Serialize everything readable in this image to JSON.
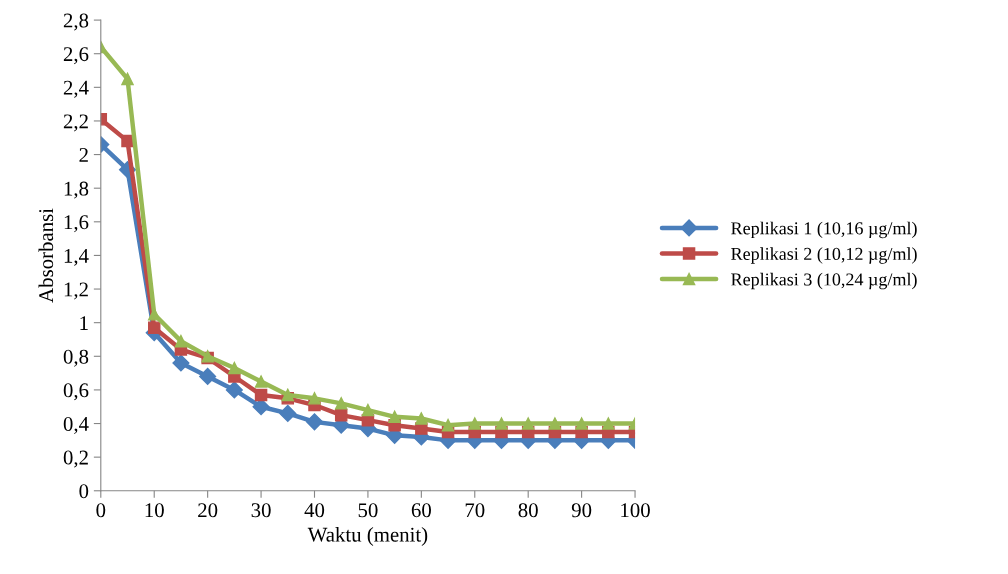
{
  "chart_data": {
    "type": "line",
    "xlabel": "Waktu (menit)",
    "ylabel": "Absorbansi",
    "x": [
      0,
      5,
      10,
      15,
      20,
      25,
      30,
      35,
      40,
      45,
      50,
      55,
      60,
      65,
      70,
      75,
      80,
      85,
      90,
      95,
      100
    ],
    "series": [
      {
        "name": "Replikasi 1 (10,16 µg/ml)",
        "color": "#4a7ebb",
        "marker": "diamond",
        "values": [
          2.06,
          1.91,
          0.94,
          0.76,
          0.68,
          0.6,
          0.5,
          0.46,
          0.41,
          0.39,
          0.37,
          0.33,
          0.32,
          0.3,
          0.3,
          0.3,
          0.3,
          0.3,
          0.3,
          0.3,
          0.3
        ]
      },
      {
        "name": "Replikasi 2 (10,12 µg/ml)",
        "color": "#be4b48",
        "marker": "square",
        "values": [
          2.21,
          2.08,
          0.97,
          0.84,
          0.79,
          0.68,
          0.57,
          0.55,
          0.51,
          0.45,
          0.42,
          0.39,
          0.37,
          0.35,
          0.35,
          0.35,
          0.35,
          0.35,
          0.35,
          0.35,
          0.35
        ]
      },
      {
        "name": "Replikasi 3 (10,24 µg/ml)",
        "color": "#98b954",
        "marker": "triangle",
        "values": [
          2.64,
          2.45,
          1.05,
          0.89,
          0.8,
          0.73,
          0.65,
          0.57,
          0.55,
          0.52,
          0.48,
          0.44,
          0.43,
          0.39,
          0.4,
          0.4,
          0.4,
          0.4,
          0.4,
          0.4,
          0.4
        ]
      }
    ],
    "xlim": [
      0,
      100
    ],
    "xticks": [
      0,
      10,
      20,
      30,
      40,
      50,
      60,
      70,
      80,
      90,
      100
    ],
    "ylim": [
      0,
      2.8
    ],
    "yticks": [
      {
        "value": 0,
        "label": "0"
      },
      {
        "value": 0.2,
        "label": "0,2"
      },
      {
        "value": 0.4,
        "label": "0,4"
      },
      {
        "value": 0.6,
        "label": "0,6"
      },
      {
        "value": 0.8,
        "label": "0,8"
      },
      {
        "value": 1,
        "label": "1"
      },
      {
        "value": 1.2,
        "label": "1,2"
      },
      {
        "value": 1.4,
        "label": "1,4"
      },
      {
        "value": 1.6,
        "label": "1,6"
      },
      {
        "value": 1.8,
        "label": "1,8"
      },
      {
        "value": 2,
        "label": "2"
      },
      {
        "value": 2.2,
        "label": "2,2"
      },
      {
        "value": 2.4,
        "label": "2,4"
      },
      {
        "value": 2.6,
        "label": "2,6"
      },
      {
        "value": 2.8,
        "label": "2,8"
      }
    ],
    "grid": false,
    "legend": "right",
    "line_style": "solid"
  }
}
